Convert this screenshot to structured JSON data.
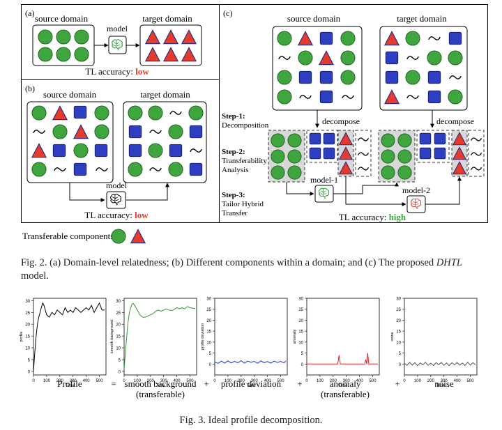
{
  "fig2": {
    "panel_a": {
      "tag": "(a)",
      "source_label": "source domain",
      "model_label": "model",
      "target_label": "target domain",
      "tl_prefix": "TL accuracy:",
      "tl_value": "low"
    },
    "panel_b": {
      "tag": "(b)",
      "source_label": "source domain",
      "target_label": "target domain",
      "model_label": "model",
      "tl_prefix": "TL accuracy:",
      "tl_value": "low"
    },
    "panel_c": {
      "tag": "(c)",
      "source_label": "source domain",
      "target_label": "target domain",
      "decompose_left": "decompose",
      "decompose_right": "decompose",
      "step1_title": "Step-1:",
      "step1_text": "Decomposition",
      "step2_title": "Step-2:",
      "step2_line1": "Transferability",
      "step2_line2": "Analysis",
      "step3_title": "Step-3:",
      "step3_line1": "Tailor Hybrid",
      "step3_line2": "Transfer",
      "model1_label": "model-1",
      "model2_label": "model-2",
      "tl_prefix": "TL accuracy:",
      "tl_value": "high"
    },
    "legend_label": "Transferable components:",
    "caption": "Fig. 2.  (a) Domain-level relatedness; (b) Different components within a domain; and (c) The proposed DHTL model.",
    "colors": {
      "circle": "#3fa63f",
      "triangle": "#e53b2c",
      "square": "#2d3ec0",
      "low": "#e53b2c",
      "high": "#3fa63f"
    }
  },
  "fig3": {
    "caption": "Fig. 3.  Ideal profile decomposition.",
    "operators": [
      "=",
      "+",
      "+",
      "+"
    ],
    "panel_titles": [
      "Profile",
      "smooth background",
      "profile deviation",
      "anomaly",
      "noise"
    ],
    "panel_subtitles": [
      "",
      "(transferable)",
      "",
      "(transferable)",
      ""
    ]
  },
  "chart_data": [
    {
      "type": "line",
      "ylabel": "profile",
      "xlabel": "Time",
      "xlim": [
        0,
        550
      ],
      "ylim": [
        0,
        30
      ],
      "xticks": [
        0,
        100,
        200,
        300,
        400,
        500
      ],
      "yticks": [
        0,
        5,
        10,
        15,
        20,
        25,
        30
      ],
      "color": "#000000",
      "x": [
        0,
        10,
        20,
        30,
        40,
        50,
        60,
        70,
        80,
        100,
        120,
        140,
        160,
        180,
        200,
        220,
        240,
        260,
        280,
        300,
        320,
        340,
        360,
        380,
        400,
        420,
        440,
        460,
        480,
        500,
        520,
        540
      ],
      "y": [
        0,
        8,
        15,
        20,
        23,
        25,
        27,
        29,
        28,
        24,
        23,
        25,
        24,
        26,
        25,
        24,
        27,
        25,
        26,
        25,
        27,
        26,
        25,
        26,
        27,
        26,
        28,
        25,
        27,
        29,
        26,
        26
      ]
    },
    {
      "type": "line",
      "ylabel": "smooth background",
      "xlabel": "Time",
      "xlim": [
        0,
        550
      ],
      "ylim": [
        0,
        30
      ],
      "xticks": [
        0,
        100,
        200,
        300,
        400,
        500
      ],
      "yticks": [
        0,
        5,
        10,
        15,
        20,
        25,
        30
      ],
      "color": "#2a9a2a",
      "x": [
        0,
        10,
        20,
        30,
        40,
        50,
        60,
        70,
        80,
        100,
        120,
        140,
        160,
        180,
        200,
        220,
        240,
        260,
        280,
        300,
        320,
        340,
        360,
        380,
        400,
        420,
        440,
        460,
        480,
        500,
        520,
        540
      ],
      "y": [
        1,
        8,
        15,
        21,
        25,
        27,
        28.5,
        28.8,
        28,
        26,
        24,
        23,
        23,
        23.5,
        24,
        24.5,
        25.5,
        26,
        25.5,
        26,
        26.5,
        26,
        25.8,
        26.3,
        27,
        26.5,
        27,
        26.5,
        27.5,
        27,
        26.8,
        26.6
      ]
    },
    {
      "type": "line",
      "ylabel": "profile deviation",
      "xlabel": "Time",
      "xlim": [
        0,
        550
      ],
      "ylim": [
        0,
        30
      ],
      "xticks": [
        0,
        100,
        200,
        300,
        400,
        500
      ],
      "yticks": [
        0,
        5,
        10,
        15,
        20,
        25,
        30
      ],
      "color": "#1f2fd0",
      "x": [
        0,
        25,
        50,
        75,
        100,
        125,
        150,
        175,
        200,
        225,
        250,
        275,
        300,
        325,
        350,
        375,
        400,
        425,
        450,
        475,
        500,
        525,
        540
      ],
      "y": [
        0.8,
        0.3,
        1.3,
        0.4,
        1.4,
        0.5,
        1.2,
        0.6,
        1.5,
        0.4,
        1.3,
        0.8,
        1.2,
        0.3,
        1.4,
        0.6,
        1.1,
        0.4,
        1.3,
        0.7,
        1.2,
        0.5,
        1.4
      ]
    },
    {
      "type": "line",
      "ylabel": "anomaly",
      "xlabel": "Time",
      "xlim": [
        0,
        550
      ],
      "ylim": [
        0,
        30
      ],
      "xticks": [
        0,
        100,
        200,
        300,
        400,
        500
      ],
      "yticks": [
        0,
        5,
        10,
        15,
        20,
        25,
        30
      ],
      "color": "#e02020",
      "x": [
        0,
        235,
        245,
        255,
        265,
        440,
        448,
        455,
        462,
        470,
        540
      ],
      "y": [
        0,
        0,
        4,
        0,
        0,
        0,
        2,
        0,
        5,
        0,
        0
      ]
    },
    {
      "type": "line",
      "ylabel": "noise",
      "xlabel": "Time",
      "xlim": [
        0,
        550
      ],
      "ylim": [
        0,
        30
      ],
      "xticks": [
        0,
        100,
        200,
        300,
        400,
        500
      ],
      "yticks": [
        0,
        5,
        10,
        15,
        20,
        25,
        30
      ],
      "color": "#555555",
      "x": [
        0,
        20,
        40,
        60,
        80,
        100,
        120,
        140,
        160,
        180,
        200,
        220,
        240,
        260,
        280,
        300,
        320,
        340,
        360,
        380,
        400,
        420,
        440,
        460,
        480,
        500,
        520,
        540
      ],
      "y": [
        0.4,
        -0.6,
        0.7,
        -0.5,
        0.6,
        -0.8,
        0.5,
        -0.4,
        0.8,
        -0.6,
        0.4,
        -0.7,
        0.6,
        -0.3,
        0.7,
        -0.6,
        0.5,
        -0.8,
        0.6,
        -0.4,
        0.7,
        -0.5,
        0.4,
        -0.7,
        0.8,
        -0.5,
        0.6,
        -0.4
      ]
    }
  ]
}
